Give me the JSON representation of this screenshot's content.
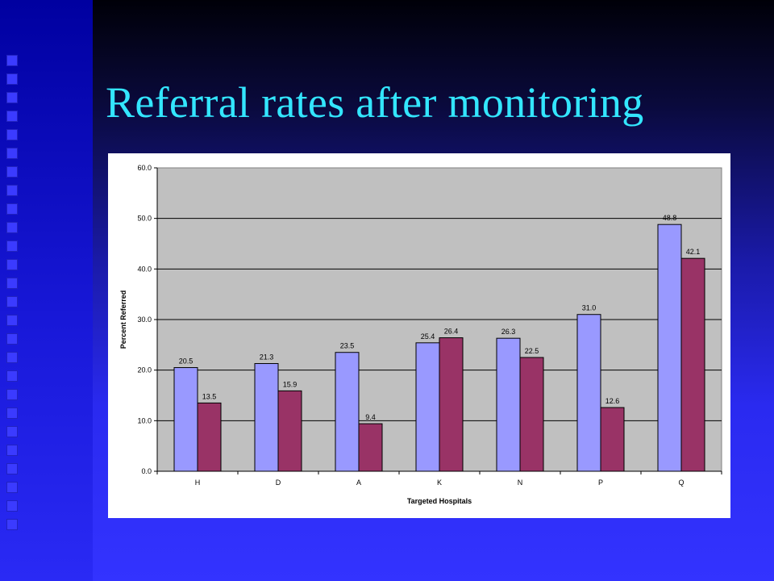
{
  "slide": {
    "title": "Referral rates after monitoring",
    "colors": {
      "title": "#33e6ff",
      "background_blue": "#3333ff",
      "plot_area": "#c0c0c0"
    }
  },
  "chart_data": {
    "type": "bar",
    "xlabel": "Targeted Hospitals",
    "ylabel": "Percent Referred",
    "categories": [
      "H",
      "D",
      "A",
      "K",
      "N",
      "P",
      "Q"
    ],
    "series": [
      {
        "values": [
          20.5,
          21.3,
          23.5,
          25.4,
          26.3,
          31.0,
          48.8
        ],
        "color": "#9999ff",
        "labels": [
          "20.5",
          "21.3",
          "23.5",
          "25.4",
          "26.3",
          "31.0",
          "48.8"
        ]
      },
      {
        "values": [
          13.5,
          15.9,
          9.4,
          26.4,
          22.5,
          12.6,
          42.1
        ],
        "color": "#993366",
        "labels": [
          "13.5",
          "15.9",
          "9.4",
          "26.4",
          "22.5",
          "12.6",
          "42.1"
        ]
      }
    ],
    "ylim": [
      0,
      60
    ],
    "yticks": [
      "0.0",
      "10.0",
      "20.0",
      "30.0",
      "40.0",
      "50.0",
      "60.0"
    ],
    "grid": true,
    "legend": "none"
  }
}
